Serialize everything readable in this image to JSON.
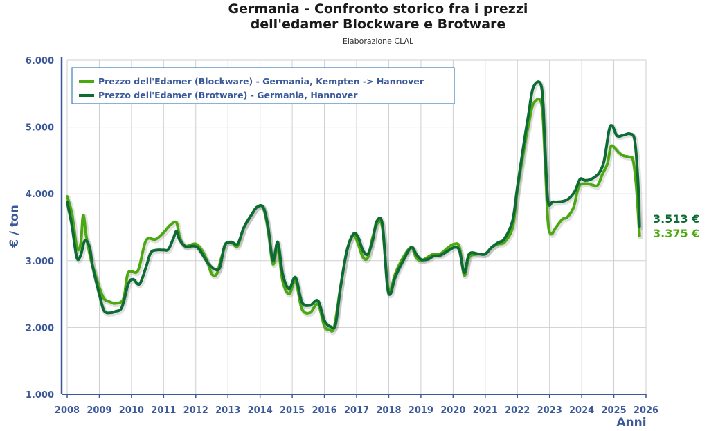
{
  "chart_data": {
    "type": "line",
    "title_line1": "Germania - Confronto storico fra i prezzi",
    "title_line2": "dell'edamer Blockware e Brotware",
    "subtitle": "Elaborazione CLAL",
    "ylabel": "€ / ton",
    "xlabel": "Anni",
    "ylim": [
      1000,
      6000
    ],
    "xlim": [
      2008,
      2026
    ],
    "y_ticks": [
      1000,
      2000,
      3000,
      4000,
      5000,
      6000
    ],
    "y_tick_labels": [
      "1.000",
      "2.000",
      "3.000",
      "4.000",
      "5.000",
      "6.000"
    ],
    "x_ticks": [
      "2008",
      "2009",
      "2010",
      "2011",
      "2012",
      "2013",
      "2014",
      "2015",
      "2016",
      "2017",
      "2018",
      "2019",
      "2020",
      "2021",
      "2022",
      "2023",
      "2024",
      "2025",
      "2026"
    ],
    "grid": true,
    "legend_position": "top-left",
    "series": [
      {
        "name": "Prezzo dell'Edamer (Blockware) - Germania, Kempten -> Hannover",
        "color": "#4ca80f",
        "end_label": "3.375 €",
        "points": [
          [
            2008.0,
            3960
          ],
          [
            2008.15,
            3700
          ],
          [
            2008.3,
            3200
          ],
          [
            2008.42,
            3250
          ],
          [
            2008.5,
            3680
          ],
          [
            2008.6,
            3350
          ],
          [
            2008.75,
            3000
          ],
          [
            2008.9,
            2750
          ],
          [
            2009.0,
            2600
          ],
          [
            2009.15,
            2430
          ],
          [
            2009.35,
            2380
          ],
          [
            2009.5,
            2360
          ],
          [
            2009.75,
            2430
          ],
          [
            2009.9,
            2820
          ],
          [
            2010.2,
            2850
          ],
          [
            2010.45,
            3300
          ],
          [
            2010.75,
            3320
          ],
          [
            2011.0,
            3420
          ],
          [
            2011.2,
            3530
          ],
          [
            2011.4,
            3570
          ],
          [
            2011.5,
            3350
          ],
          [
            2011.65,
            3220
          ],
          [
            2011.8,
            3230
          ],
          [
            2012.0,
            3250
          ],
          [
            2012.2,
            3150
          ],
          [
            2012.35,
            3000
          ],
          [
            2012.5,
            2800
          ],
          [
            2012.65,
            2800
          ],
          [
            2012.8,
            3050
          ],
          [
            2012.95,
            3260
          ],
          [
            2013.15,
            3260
          ],
          [
            2013.3,
            3220
          ],
          [
            2013.5,
            3500
          ],
          [
            2013.75,
            3700
          ],
          [
            2013.9,
            3800
          ],
          [
            2014.1,
            3790
          ],
          [
            2014.25,
            3450
          ],
          [
            2014.4,
            2950
          ],
          [
            2014.55,
            3200
          ],
          [
            2014.7,
            2700
          ],
          [
            2014.9,
            2500
          ],
          [
            2015.1,
            2700
          ],
          [
            2015.3,
            2280
          ],
          [
            2015.55,
            2220
          ],
          [
            2015.8,
            2350
          ],
          [
            2016.0,
            2020
          ],
          [
            2016.15,
            1970
          ],
          [
            2016.3,
            2000
          ],
          [
            2016.5,
            2600
          ],
          [
            2016.7,
            3150
          ],
          [
            2016.9,
            3380
          ],
          [
            2017.05,
            3250
          ],
          [
            2017.2,
            3050
          ],
          [
            2017.35,
            3050
          ],
          [
            2017.5,
            3350
          ],
          [
            2017.65,
            3560
          ],
          [
            2017.8,
            3500
          ],
          [
            2017.95,
            2700
          ],
          [
            2018.05,
            2550
          ],
          [
            2018.2,
            2800
          ],
          [
            2018.45,
            3050
          ],
          [
            2018.7,
            3200
          ],
          [
            2018.85,
            3050
          ],
          [
            2019.0,
            3000
          ],
          [
            2019.2,
            3050
          ],
          [
            2019.4,
            3100
          ],
          [
            2019.6,
            3100
          ],
          [
            2019.85,
            3200
          ],
          [
            2020.05,
            3250
          ],
          [
            2020.2,
            3200
          ],
          [
            2020.35,
            2780
          ],
          [
            2020.5,
            3050
          ],
          [
            2020.8,
            3100
          ],
          [
            2021.0,
            3100
          ],
          [
            2021.2,
            3200
          ],
          [
            2021.4,
            3250
          ],
          [
            2021.6,
            3280
          ],
          [
            2021.85,
            3500
          ],
          [
            2022.0,
            4050
          ],
          [
            2022.2,
            4650
          ],
          [
            2022.35,
            5050
          ],
          [
            2022.5,
            5350
          ],
          [
            2022.75,
            5350
          ],
          [
            2022.85,
            4600
          ],
          [
            2022.95,
            3600
          ],
          [
            2023.05,
            3400
          ],
          [
            2023.2,
            3500
          ],
          [
            2023.4,
            3620
          ],
          [
            2023.55,
            3650
          ],
          [
            2023.75,
            3800
          ],
          [
            2023.9,
            4100
          ],
          [
            2024.05,
            4150
          ],
          [
            2024.2,
            4150
          ],
          [
            2024.35,
            4130
          ],
          [
            2024.5,
            4130
          ],
          [
            2024.65,
            4300
          ],
          [
            2024.8,
            4450
          ],
          [
            2024.9,
            4700
          ],
          [
            2025.0,
            4700
          ],
          [
            2025.15,
            4620
          ],
          [
            2025.3,
            4570
          ],
          [
            2025.5,
            4550
          ],
          [
            2025.6,
            4500
          ],
          [
            2025.7,
            4100
          ],
          [
            2025.8,
            3375
          ]
        ]
      },
      {
        "name": "Prezzo dell'Edamer (Brotware) - Germania, Hannover",
        "color": "#0d6b34",
        "end_label": "3.513 €",
        "points": [
          [
            2008.0,
            3880
          ],
          [
            2008.15,
            3520
          ],
          [
            2008.3,
            3050
          ],
          [
            2008.42,
            3080
          ],
          [
            2008.55,
            3300
          ],
          [
            2008.7,
            3200
          ],
          [
            2008.8,
            2900
          ],
          [
            2009.0,
            2500
          ],
          [
            2009.15,
            2250
          ],
          [
            2009.35,
            2220
          ],
          [
            2009.5,
            2240
          ],
          [
            2009.7,
            2300
          ],
          [
            2009.9,
            2650
          ],
          [
            2010.05,
            2720
          ],
          [
            2010.25,
            2650
          ],
          [
            2010.45,
            2900
          ],
          [
            2010.6,
            3120
          ],
          [
            2010.8,
            3160
          ],
          [
            2011.0,
            3160
          ],
          [
            2011.15,
            3170
          ],
          [
            2011.3,
            3330
          ],
          [
            2011.4,
            3440
          ],
          [
            2011.5,
            3310
          ],
          [
            2011.7,
            3210
          ],
          [
            2011.9,
            3220
          ],
          [
            2012.05,
            3200
          ],
          [
            2012.2,
            3100
          ],
          [
            2012.4,
            2950
          ],
          [
            2012.6,
            2870
          ],
          [
            2012.75,
            2900
          ],
          [
            2012.9,
            3230
          ],
          [
            2013.1,
            3280
          ],
          [
            2013.3,
            3250
          ],
          [
            2013.5,
            3500
          ],
          [
            2013.75,
            3700
          ],
          [
            2013.9,
            3800
          ],
          [
            2014.1,
            3800
          ],
          [
            2014.25,
            3500
          ],
          [
            2014.4,
            3000
          ],
          [
            2014.55,
            3280
          ],
          [
            2014.7,
            2800
          ],
          [
            2014.9,
            2580
          ],
          [
            2015.1,
            2750
          ],
          [
            2015.3,
            2380
          ],
          [
            2015.55,
            2330
          ],
          [
            2015.8,
            2400
          ],
          [
            2016.0,
            2100
          ],
          [
            2016.2,
            2010
          ],
          [
            2016.35,
            2050
          ],
          [
            2016.5,
            2600
          ],
          [
            2016.7,
            3150
          ],
          [
            2016.9,
            3400
          ],
          [
            2017.05,
            3350
          ],
          [
            2017.2,
            3150
          ],
          [
            2017.35,
            3100
          ],
          [
            2017.5,
            3300
          ],
          [
            2017.62,
            3580
          ],
          [
            2017.8,
            3550
          ],
          [
            2017.95,
            2650
          ],
          [
            2018.05,
            2500
          ],
          [
            2018.2,
            2750
          ],
          [
            2018.45,
            3000
          ],
          [
            2018.7,
            3200
          ],
          [
            2018.85,
            3100
          ],
          [
            2019.0,
            3020
          ],
          [
            2019.2,
            3020
          ],
          [
            2019.4,
            3070
          ],
          [
            2019.6,
            3080
          ],
          [
            2019.85,
            3150
          ],
          [
            2020.05,
            3200
          ],
          [
            2020.2,
            3150
          ],
          [
            2020.35,
            2820
          ],
          [
            2020.5,
            3100
          ],
          [
            2020.8,
            3100
          ],
          [
            2021.0,
            3100
          ],
          [
            2021.2,
            3200
          ],
          [
            2021.4,
            3270
          ],
          [
            2021.6,
            3330
          ],
          [
            2021.85,
            3600
          ],
          [
            2022.0,
            4100
          ],
          [
            2022.2,
            4750
          ],
          [
            2022.35,
            5200
          ],
          [
            2022.5,
            5600
          ],
          [
            2022.75,
            5600
          ],
          [
            2022.85,
            4800
          ],
          [
            2022.95,
            3900
          ],
          [
            2023.1,
            3880
          ],
          [
            2023.3,
            3880
          ],
          [
            2023.5,
            3900
          ],
          [
            2023.65,
            3950
          ],
          [
            2023.8,
            4050
          ],
          [
            2023.95,
            4220
          ],
          [
            2024.1,
            4200
          ],
          [
            2024.25,
            4210
          ],
          [
            2024.4,
            4250
          ],
          [
            2024.55,
            4320
          ],
          [
            2024.7,
            4500
          ],
          [
            2024.85,
            4950
          ],
          [
            2024.95,
            5020
          ],
          [
            2025.1,
            4870
          ],
          [
            2025.3,
            4880
          ],
          [
            2025.5,
            4900
          ],
          [
            2025.65,
            4800
          ],
          [
            2025.75,
            4200
          ],
          [
            2025.8,
            3513
          ]
        ]
      }
    ]
  }
}
